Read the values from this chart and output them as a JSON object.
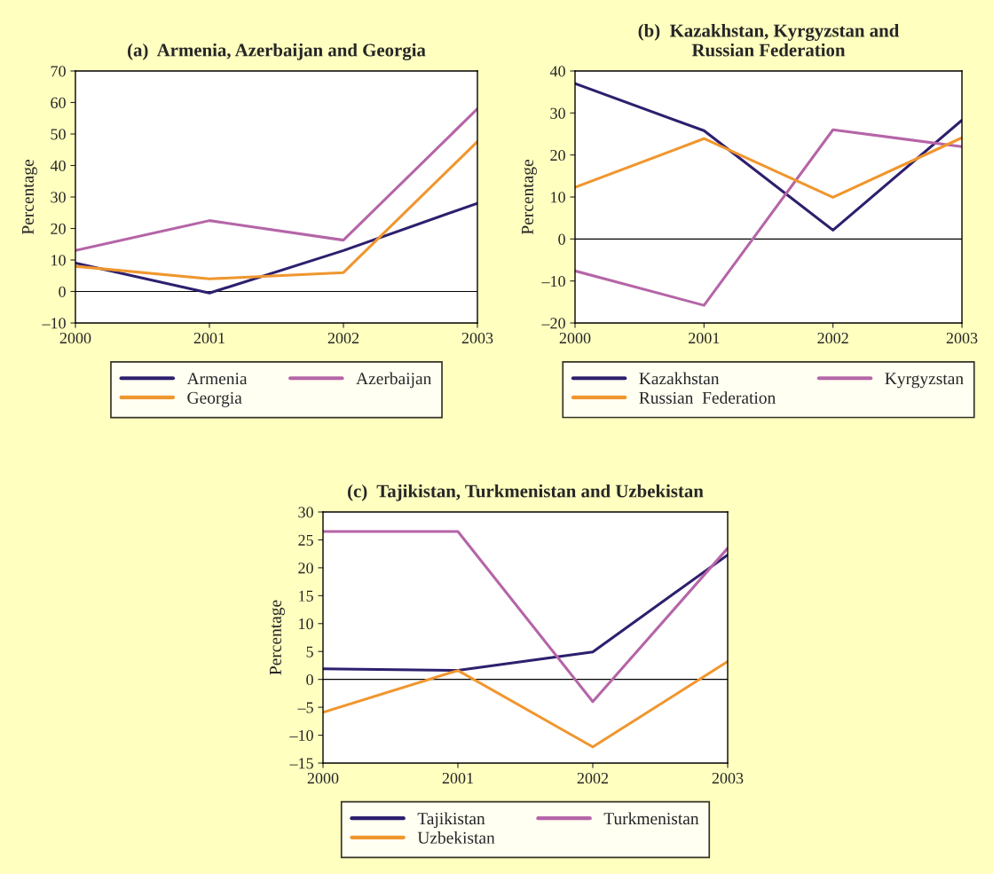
{
  "chart_data": [
    {
      "type": "line",
      "title": "(a)  Armenia, Azerbaijan and Georgia",
      "ylabel": "Percentage",
      "x": [
        2000,
        2001,
        2002,
        2003
      ],
      "xlim": [
        2000,
        2003
      ],
      "xticks": [
        2000,
        2001,
        2002,
        2003
      ],
      "ylim": [
        -10,
        70
      ],
      "yticks": [
        {
          "value": -10,
          "label": "–10"
        },
        0,
        10,
        20,
        30,
        40,
        50,
        60,
        70
      ],
      "grid": false,
      "legend": "bottom",
      "ref_lines": [
        {
          "axis": "y",
          "value": 0,
          "color": "#000000"
        }
      ],
      "series": [
        {
          "name": "Armenia",
          "color": "#2e1f6e",
          "values": [
            9,
            -0.5,
            13,
            28
          ]
        },
        {
          "name": "Azerbaijan",
          "color": "#b565a7",
          "values": [
            13,
            22.5,
            16.3,
            58
          ]
        },
        {
          "name": "Georgia",
          "color": "#f0962e",
          "values": [
            8,
            4,
            6,
            47.6
          ]
        }
      ]
    },
    {
      "type": "line",
      "title": "(b)  Kazakhstan, Kyrgyzstan and\nRussian Federation",
      "ylabel": "Percentage",
      "x": [
        2000,
        2001,
        2002,
        2003
      ],
      "xlim": [
        2000,
        2003
      ],
      "xticks": [
        2000,
        2001,
        2002,
        2003
      ],
      "ylim": [
        -20,
        40
      ],
      "yticks": [
        {
          "value": -20,
          "label": "–20"
        },
        {
          "value": -10,
          "label": "–10"
        },
        0,
        10,
        20,
        30,
        40
      ],
      "grid": false,
      "legend": "bottom",
      "ref_lines": [
        {
          "axis": "y",
          "value": 0,
          "color": "#000000"
        }
      ],
      "series": [
        {
          "name": "Kazakhstan",
          "color": "#2e1f6e",
          "values": [
            37,
            25.8,
            2.1,
            28.3
          ]
        },
        {
          "name": "Kyrgyzstan",
          "color": "#b565a7",
          "values": [
            -7.6,
            -15.8,
            26,
            22
          ]
        },
        {
          "name": "Russian  Federation",
          "color": "#f0962e",
          "values": [
            12.3,
            23.9,
            9.9,
            24.1
          ]
        }
      ]
    },
    {
      "type": "line",
      "title": "(c)  Tajikistan, Turkmenistan and Uzbekistan",
      "ylabel": "Percentage",
      "x": [
        2000,
        2001,
        2002,
        2003
      ],
      "xlim": [
        2000,
        2003
      ],
      "xticks": [
        2000,
        2001,
        2002,
        2003
      ],
      "ylim": [
        -15,
        30
      ],
      "yticks": [
        {
          "value": -15,
          "label": "–15"
        },
        {
          "value": -10,
          "label": "–10"
        },
        {
          "value": -5,
          "label": "–5"
        },
        0,
        5,
        10,
        15,
        20,
        25,
        30
      ],
      "grid": false,
      "legend": "bottom",
      "ref_lines": [
        {
          "axis": "y",
          "value": 0,
          "color": "#000000"
        }
      ],
      "series": [
        {
          "name": "Tajikistan",
          "color": "#2e1f6e",
          "values": [
            1.9,
            1.6,
            4.9,
            22.3
          ]
        },
        {
          "name": "Turkmenistan",
          "color": "#b565a7",
          "values": [
            26.5,
            26.5,
            -4,
            23.5
          ]
        },
        {
          "name": "Uzbekistan",
          "color": "#f0962e",
          "values": [
            -5.9,
            1.6,
            -12.1,
            3.2
          ]
        }
      ]
    }
  ]
}
